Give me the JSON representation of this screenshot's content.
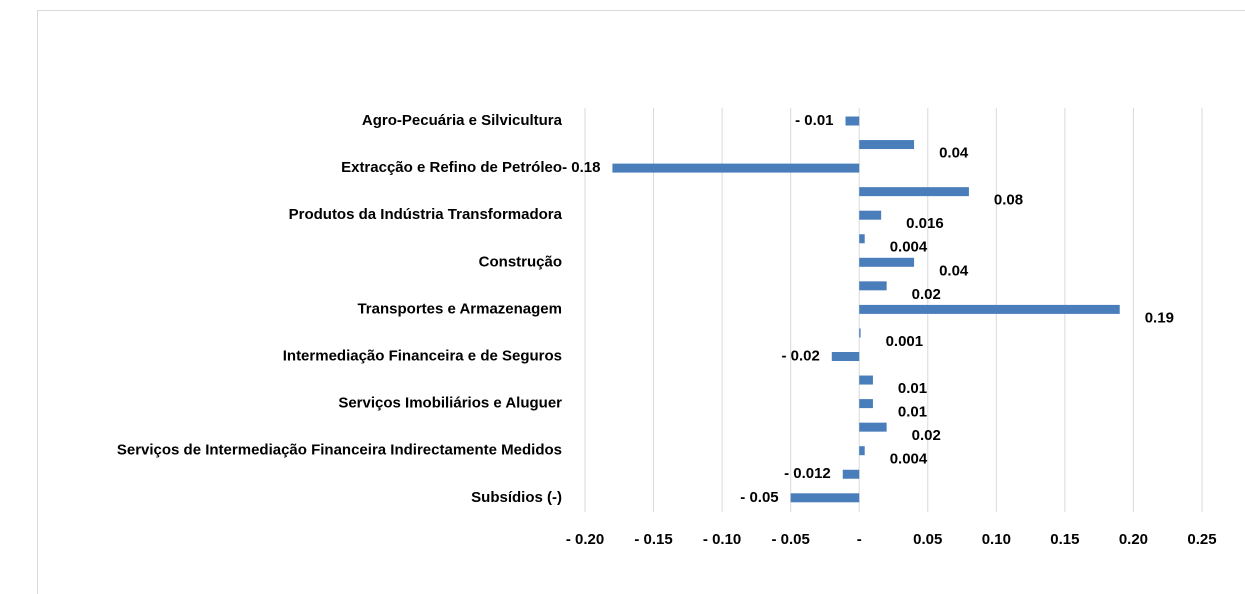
{
  "chart_data": {
    "type": "bar",
    "orientation": "horizontal",
    "categories": [
      "Agro-Pecuária e Silvicultura",
      null,
      "Extracção e Refino de Petróleo",
      null,
      "Produtos da Indústria Transformadora",
      null,
      "Construção",
      null,
      "Transportes e Armazenagem",
      null,
      "Intermediação Financeira e de Seguros",
      null,
      "Serviços Imobiliários e Aluguer",
      null,
      "Serviços de Intermediação Financeira Indirectamente Medidos",
      null,
      "Subsídios (-)"
    ],
    "values": [
      -0.01,
      0.04,
      -0.18,
      0.08,
      0.016,
      0.004,
      0.04,
      0.02,
      0.19,
      0.001,
      -0.02,
      0.01,
      0.01,
      0.02,
      0.004,
      -0.012,
      -0.05
    ],
    "value_labels": [
      "- 0.01",
      "0.04",
      "- 0.18",
      "0.08",
      "0.016",
      "0.004",
      "0.04",
      "0.02",
      "0.19",
      "0.001",
      "- 0.02",
      "0.01",
      "0.01",
      "0.02",
      "0.004",
      "- 0.012",
      "- 0.05"
    ],
    "color": "#4a7ebb",
    "xlim": [
      -0.2,
      0.25
    ],
    "xticks": [
      {
        "value": -0.2,
        "label": "- 0.20"
      },
      {
        "value": -0.15,
        "label": "- 0.15"
      },
      {
        "value": -0.1,
        "label": "- 0.10"
      },
      {
        "value": -0.05,
        "label": "- 0.05"
      },
      {
        "value": 0,
        "label": "-"
      },
      {
        "value": 0.05,
        "label": "0.05"
      },
      {
        "value": 0.1,
        "label": "0.10"
      },
      {
        "value": 0.15,
        "label": "0.15"
      },
      {
        "value": 0.2,
        "label": "0.20"
      },
      {
        "value": 0.25,
        "label": "0.25"
      }
    ],
    "grid": true
  }
}
